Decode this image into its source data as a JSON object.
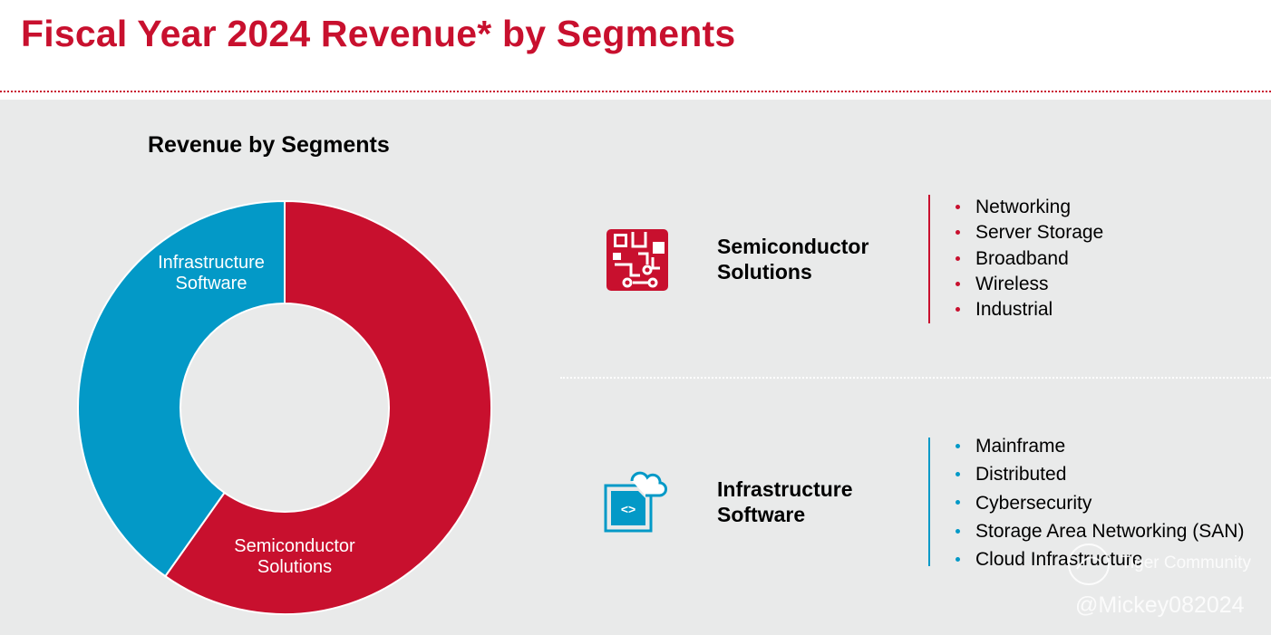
{
  "header": {
    "title": "Fiscal Year 2024 Revenue* by Segments"
  },
  "colors": {
    "accent_red": "#c8102e",
    "accent_blue": "#0399c7",
    "panel_bg": "#e9eaea"
  },
  "chart_data": {
    "type": "pie",
    "title": "Revenue by Segments",
    "series": [
      {
        "name": "Semiconductor Solutions",
        "label_lines": [
          "Semiconductor",
          "Solutions"
        ],
        "value": 59.8,
        "color": "#c8102e"
      },
      {
        "name": "Infrastructure Software",
        "label_lines": [
          "Infrastructure",
          "Software"
        ],
        "value": 40.2,
        "color": "#0399c7"
      }
    ],
    "start_angle_deg": 0,
    "direction": "clockwise",
    "donut": true,
    "legend": "none"
  },
  "segments": [
    {
      "name": "Semiconductor Solutions",
      "icon": "circuit-board-icon",
      "color": "#c8102e",
      "items": [
        "Networking",
        "Server Storage",
        "Broadband",
        "Wireless",
        "Industrial"
      ]
    },
    {
      "name": "Infrastructure Software",
      "icon": "cloud-code-icon",
      "color": "#0399c7",
      "items": [
        "Mainframe",
        "Distributed",
        "Cybersecurity",
        "Storage Area Networking (SAN)",
        "Cloud Infrastructure"
      ]
    }
  ],
  "watermark": {
    "community": "Tiger Community",
    "handle": "@Mickey082024"
  }
}
